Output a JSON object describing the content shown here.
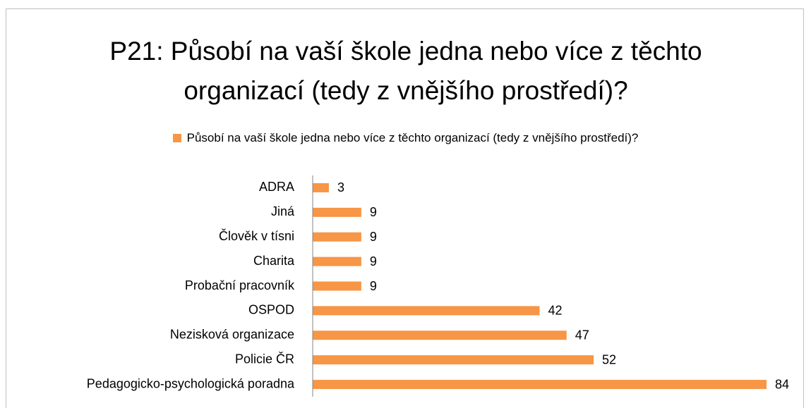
{
  "chart_data": {
    "type": "bar",
    "orientation": "horizontal",
    "title": "P21: Působí na vaší škole jedna nebo více z těchto organizací (tedy z vnějšího prostředí)?",
    "categories": [
      "ADRA",
      "Jiná",
      "Člověk v tísni",
      "Charita",
      "Probační pracovník",
      "OSPOD",
      "Nezisková organizace",
      "Policie ČR",
      "Pedagogicko-psychologická poradna"
    ],
    "series": [
      {
        "name": "Působí na vaší škole jedna nebo více z těchto organizací (tedy z vnějšího prostředí)?",
        "color": "#f79646",
        "values": [
          3,
          9,
          9,
          9,
          9,
          42,
          47,
          52,
          84
        ]
      }
    ],
    "legend": "top"
  }
}
